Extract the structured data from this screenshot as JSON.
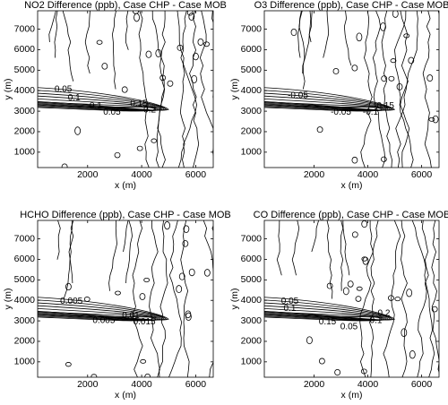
{
  "chart_data": [
    {
      "type": "contour",
      "title": "NO2 Difference (ppb), Case CHP - Case MOB",
      "xlabel": "x (m)",
      "ylabel": "y (m)",
      "xlim": [
        150,
        6650
      ],
      "ylim": [
        250,
        7900
      ],
      "xticks": [
        2000,
        4000,
        6000
      ],
      "yticks": [
        1000,
        2000,
        3000,
        4000,
        5000,
        6000,
        7000
      ],
      "contour_labels": [
        0.05,
        0.1,
        0.1,
        0.05,
        0.15,
        0.2
      ],
      "color": "#000000"
    },
    {
      "type": "contour",
      "title": "O3 Difference (ppb), Case CHP - Case MOB",
      "xlabel": "x (m)",
      "ylabel": "y (m)",
      "xlim": [
        150,
        6650
      ],
      "ylim": [
        250,
        7900
      ],
      "xticks": [
        2000,
        4000,
        6000
      ],
      "yticks": [
        1000,
        2000,
        3000,
        4000,
        5000,
        6000,
        7000
      ],
      "contour_labels": [
        -0.05,
        -0.05,
        -0.1,
        -0.15
      ],
      "color": "#000000"
    },
    {
      "type": "contour",
      "title": "HCHO Difference (ppb), Case CHP - Case MOB",
      "xlabel": "x (m)",
      "ylabel": "y (m)",
      "xlim": [
        150,
        6650
      ],
      "ylim": [
        250,
        7900
      ],
      "xticks": [
        2000,
        4000,
        6000
      ],
      "yticks": [
        1000,
        2000,
        3000,
        4000,
        5000,
        6000,
        7000
      ],
      "contour_labels": [
        0.005,
        0.005,
        0.01,
        0.015
      ],
      "color": "#000000"
    },
    {
      "type": "contour",
      "title": "CO Difference (ppb), Case CHP - Case MOB",
      "xlabel": "x (m)",
      "ylabel": "y (m)",
      "xlim": [
        150,
        6650
      ],
      "ylim": [
        250,
        7900
      ],
      "xticks": [
        2000,
        4000,
        6000
      ],
      "yticks": [
        1000,
        2000,
        3000,
        4000,
        5000,
        6000,
        7000
      ],
      "contour_labels": [
        0.05,
        0.1,
        0.15,
        0.05,
        0.1,
        0.2
      ],
      "color": "#000000"
    }
  ]
}
